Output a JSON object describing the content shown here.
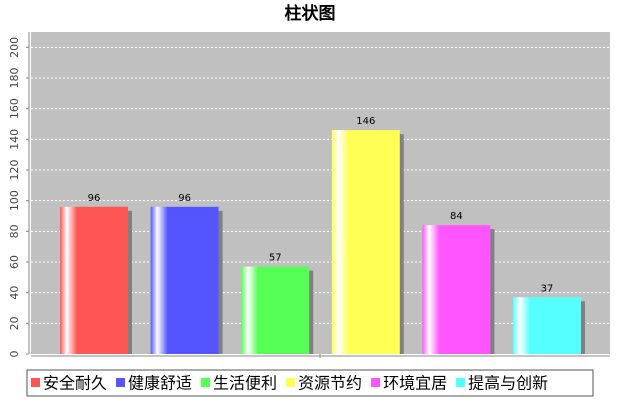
{
  "chart_data": {
    "type": "bar",
    "title": "柱状图",
    "series": [
      {
        "name": "安全耐久",
        "color": "#ff5555",
        "values": [
          96
        ]
      },
      {
        "name": "健康舒适",
        "color": "#5555ff",
        "values": [
          96
        ]
      },
      {
        "name": "生活便利",
        "color": "#55ff55",
        "values": [
          57
        ]
      },
      {
        "name": "资源节约",
        "color": "#ffff55",
        "values": [
          146
        ]
      },
      {
        "name": "环境宜居",
        "color": "#ff55ff",
        "values": [
          84
        ]
      },
      {
        "name": "提高与创新",
        "color": "#55ffff",
        "values": [
          37
        ]
      }
    ],
    "ylim": [
      0,
      210
    ],
    "yticks": [
      0,
      20,
      40,
      60,
      80,
      100,
      120,
      140,
      160,
      180,
      200
    ],
    "grid": true,
    "legend": "bottom"
  }
}
